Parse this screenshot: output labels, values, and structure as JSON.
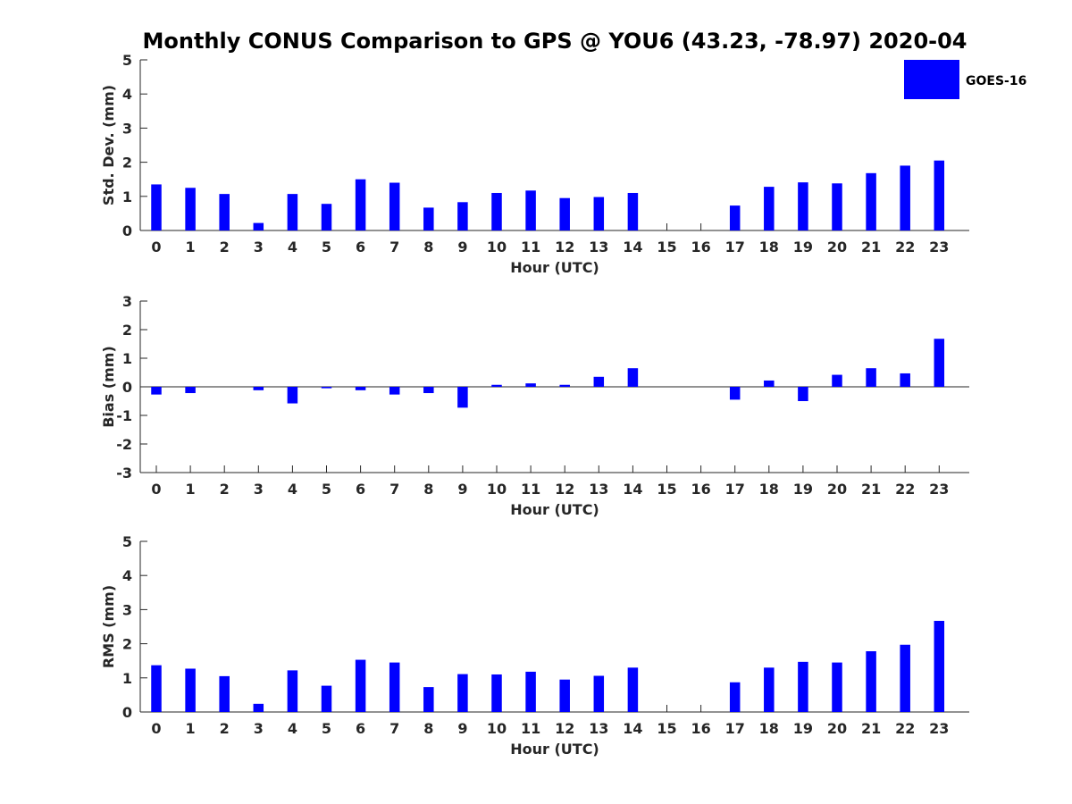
{
  "title": "Monthly CONUS Comparison to GPS @ YOU6 (43.23, -78.97) 2020-04",
  "legend": {
    "label": "GOES-16",
    "color": "#0000ff"
  },
  "chart_data": [
    {
      "type": "bar",
      "name": "std-dev",
      "xlabel": "Hour (UTC)",
      "ylabel": "Std. Dev. (mm)",
      "ylim": [
        0,
        5
      ],
      "yticks": [
        0,
        1,
        2,
        3,
        4,
        5
      ],
      "categories": [
        "0",
        "1",
        "2",
        "3",
        "4",
        "5",
        "6",
        "7",
        "8",
        "9",
        "10",
        "11",
        "12",
        "13",
        "14",
        "15",
        "16",
        "17",
        "18",
        "19",
        "20",
        "21",
        "22",
        "23"
      ],
      "series": [
        {
          "name": "GOES-16",
          "color": "#0000ff",
          "values": [
            1.35,
            1.25,
            1.07,
            0.22,
            1.07,
            0.78,
            1.5,
            1.4,
            0.67,
            0.83,
            1.1,
            1.17,
            0.95,
            0.98,
            1.1,
            null,
            null,
            0.73,
            1.28,
            1.41,
            1.38,
            1.68,
            1.9,
            2.05
          ]
        }
      ],
      "grid": false
    },
    {
      "type": "bar",
      "name": "bias",
      "xlabel": "Hour (UTC)",
      "ylabel": "Bias (mm)",
      "ylim": [
        -3,
        3
      ],
      "yticks": [
        -3,
        -2,
        -1,
        0,
        1,
        2,
        3
      ],
      "categories": [
        "0",
        "1",
        "2",
        "3",
        "4",
        "5",
        "6",
        "7",
        "8",
        "9",
        "10",
        "11",
        "12",
        "13",
        "14",
        "15",
        "16",
        "17",
        "18",
        "19",
        "20",
        "21",
        "22",
        "23"
      ],
      "series": [
        {
          "name": "GOES-16",
          "color": "#0000ff",
          "values": [
            -0.27,
            -0.22,
            0.0,
            -0.12,
            -0.58,
            -0.05,
            -0.12,
            -0.27,
            -0.22,
            -0.73,
            0.07,
            0.12,
            0.07,
            0.35,
            0.65,
            null,
            null,
            -0.45,
            0.22,
            -0.5,
            0.42,
            0.65,
            0.47,
            1.68
          ]
        }
      ],
      "grid": false
    },
    {
      "type": "bar",
      "name": "rms",
      "xlabel": "Hour (UTC)",
      "ylabel": "RMS (mm)",
      "ylim": [
        0,
        5
      ],
      "yticks": [
        0,
        1,
        2,
        3,
        4,
        5
      ],
      "categories": [
        "0",
        "1",
        "2",
        "3",
        "4",
        "5",
        "6",
        "7",
        "8",
        "9",
        "10",
        "11",
        "12",
        "13",
        "14",
        "15",
        "16",
        "17",
        "18",
        "19",
        "20",
        "21",
        "22",
        "23"
      ],
      "series": [
        {
          "name": "GOES-16",
          "color": "#0000ff",
          "values": [
            1.37,
            1.27,
            1.05,
            0.24,
            1.22,
            0.77,
            1.53,
            1.45,
            0.73,
            1.11,
            1.1,
            1.18,
            0.95,
            1.06,
            1.3,
            null,
            null,
            0.87,
            1.3,
            1.47,
            1.45,
            1.78,
            1.97,
            2.67
          ]
        }
      ],
      "grid": false
    }
  ]
}
